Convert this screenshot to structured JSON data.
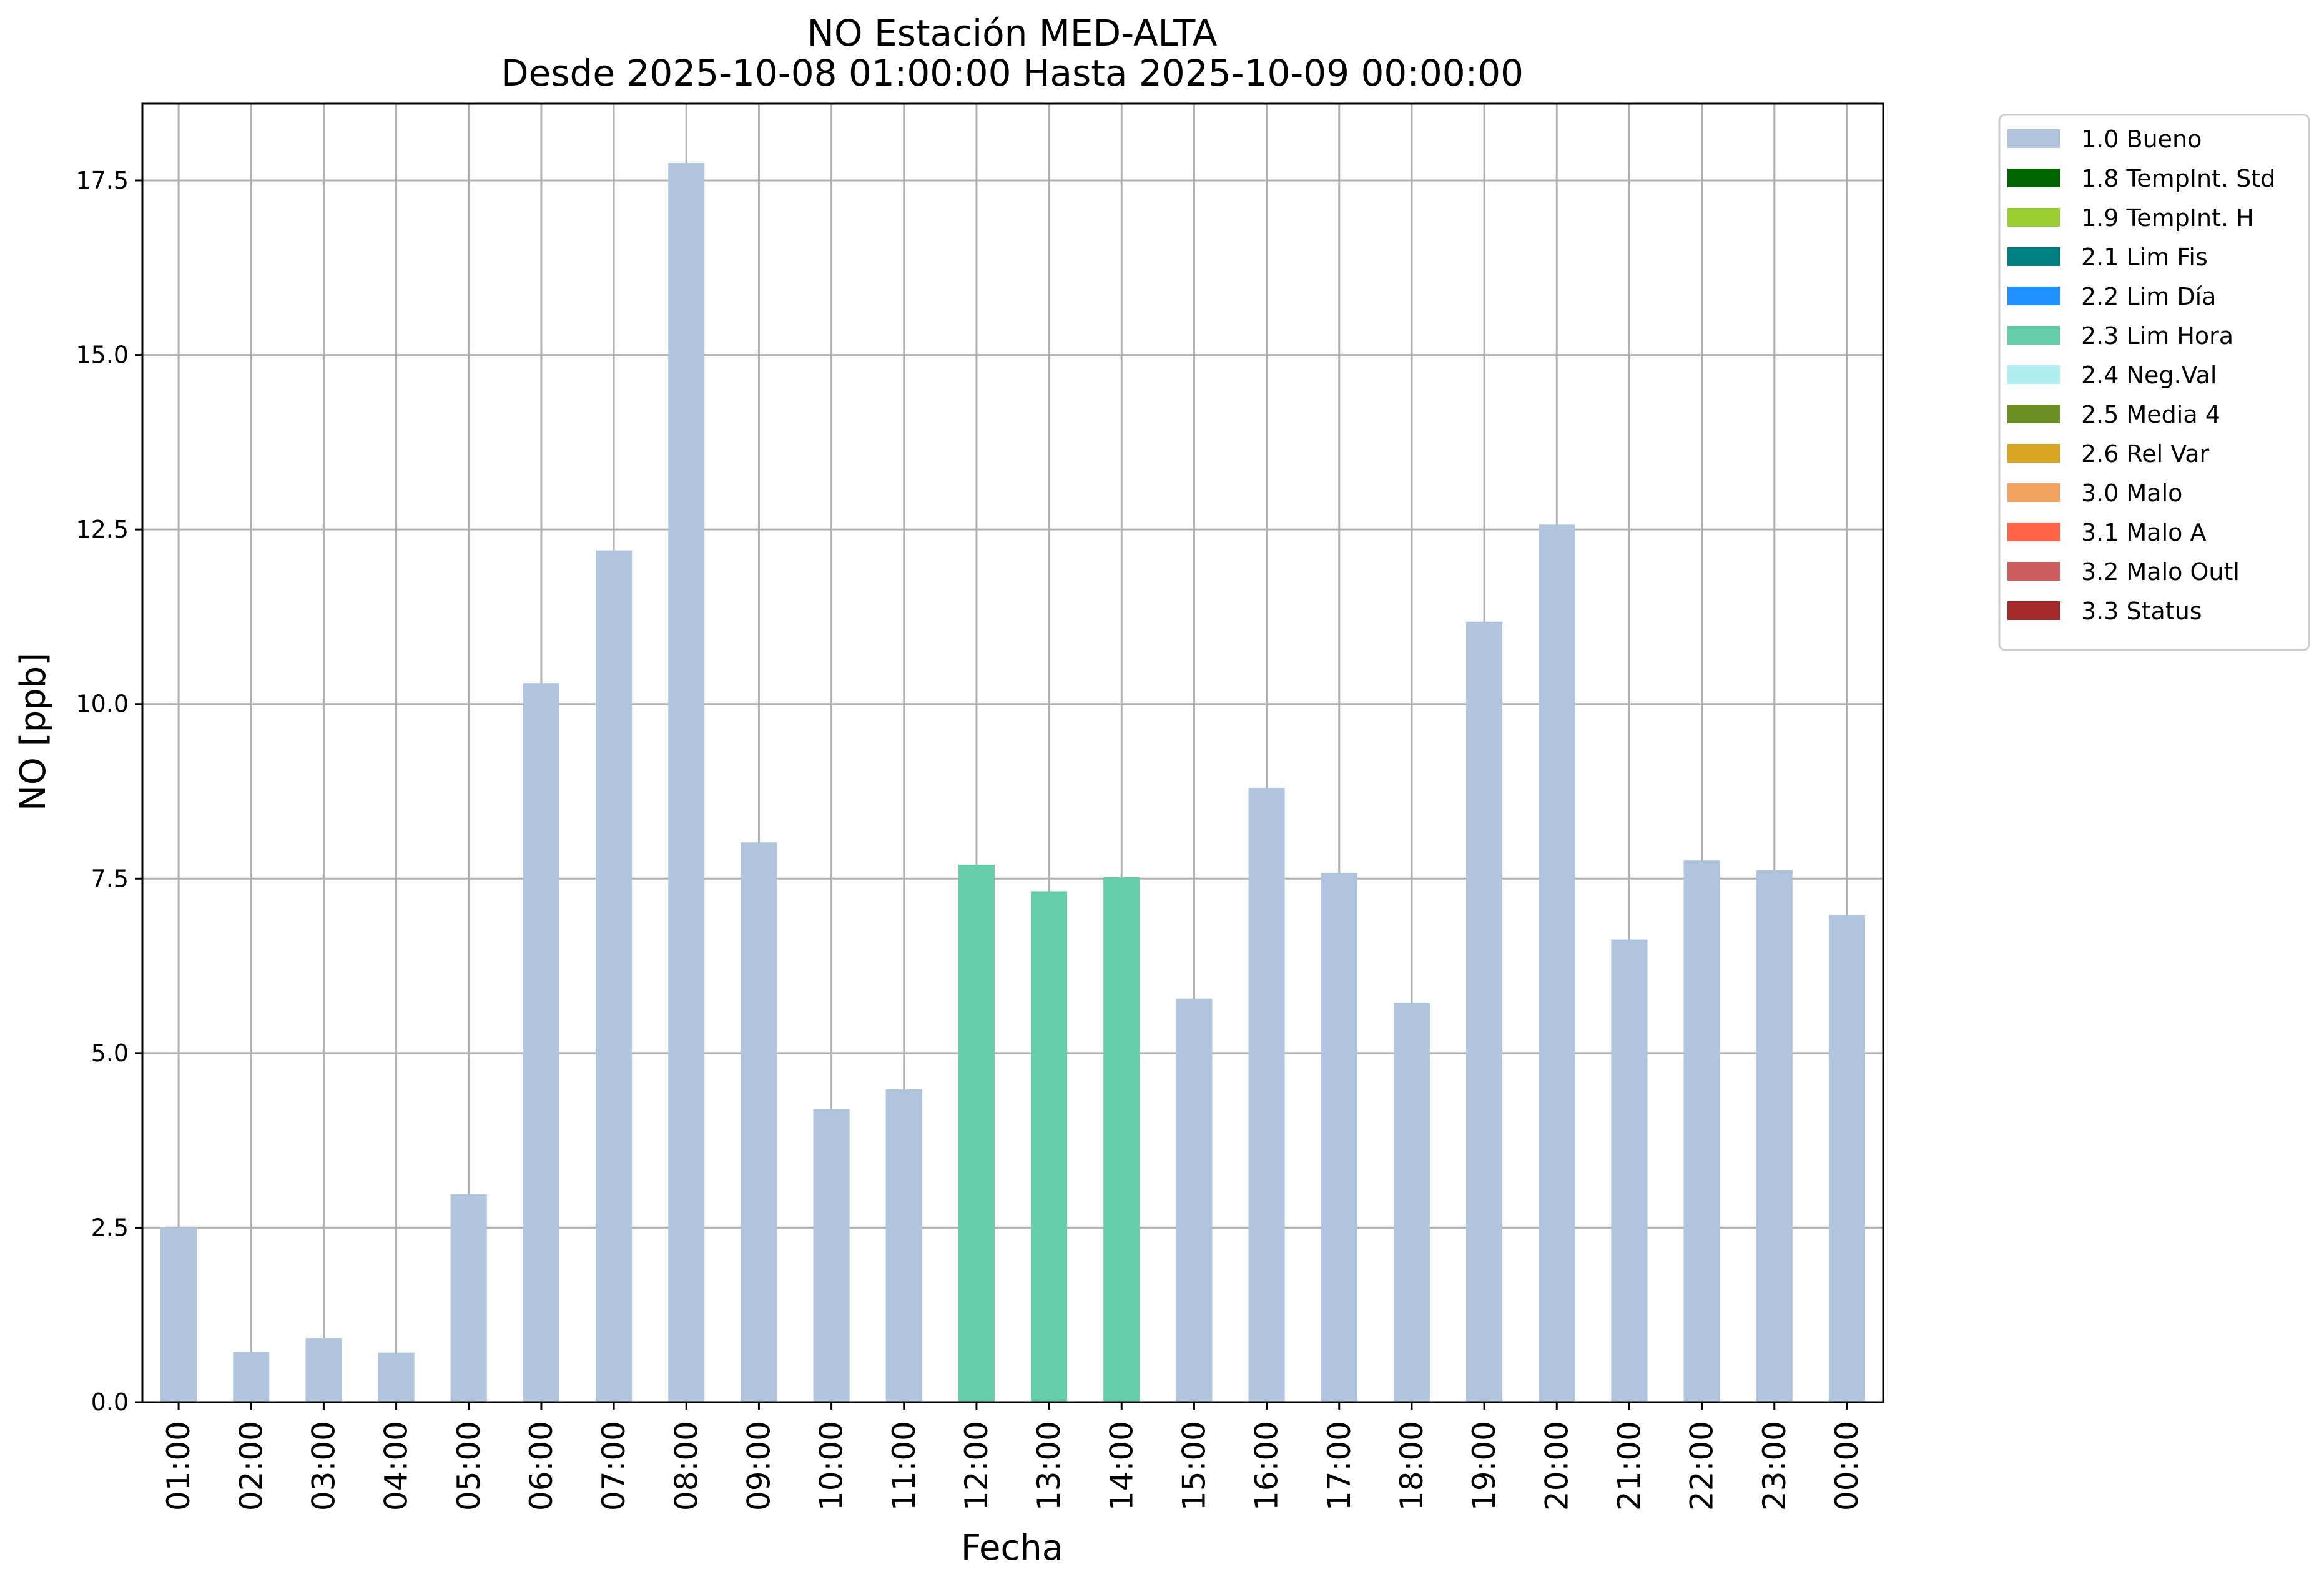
{
  "chart_data": {
    "type": "bar",
    "title": "NO Estación MED-ALTA",
    "subtitle": "Desde 2025-10-08 01:00:00 Hasta 2025-10-09 00:00:00",
    "xlabel": "Fecha",
    "ylabel": "NO [ppb]",
    "ylim": [
      0,
      18.6
    ],
    "yticks": [
      "0.0",
      "2.5",
      "5.0",
      "7.5",
      "10.0",
      "12.5",
      "15.0",
      "17.5"
    ],
    "ytick_values": [
      0,
      2.5,
      5,
      7.5,
      10,
      12.5,
      15,
      17.5
    ],
    "grid": true,
    "legend_position": "outside-top-right",
    "categories": [
      "01:00",
      "02:00",
      "03:00",
      "04:00",
      "05:00",
      "06:00",
      "07:00",
      "08:00",
      "09:00",
      "10:00",
      "11:00",
      "12:00",
      "13:00",
      "14:00",
      "15:00",
      "16:00",
      "17:00",
      "18:00",
      "19:00",
      "20:00",
      "21:00",
      "22:00",
      "23:00",
      "00:00"
    ],
    "values": [
      2.5,
      0.72,
      0.92,
      0.71,
      2.98,
      10.3,
      12.2,
      17.75,
      8.02,
      4.2,
      4.48,
      7.7,
      7.32,
      7.52,
      5.78,
      8.8,
      7.58,
      5.72,
      11.18,
      12.57,
      6.63,
      7.76,
      7.62,
      6.98
    ],
    "flags": [
      "1.0 Bueno",
      "1.0 Bueno",
      "1.0 Bueno",
      "1.0 Bueno",
      "1.0 Bueno",
      "1.0 Bueno",
      "1.0 Bueno",
      "1.0 Bueno",
      "1.0 Bueno",
      "1.0 Bueno",
      "1.0 Bueno",
      "2.3 Lim Hora",
      "2.3 Lim Hora",
      "2.3 Lim Hora",
      "1.0 Bueno",
      "1.0 Bueno",
      "1.0 Bueno",
      "1.0 Bueno",
      "1.0 Bueno",
      "1.0 Bueno",
      "1.0 Bueno",
      "1.0 Bueno",
      "1.0 Bueno",
      "1.0 Bueno"
    ],
    "legend": [
      {
        "name": "1.0 Bueno",
        "color": "#b0c4de"
      },
      {
        "name": "1.8 TempInt. Std",
        "color": "#006400"
      },
      {
        "name": "1.9 TempInt. H",
        "color": "#9acd32"
      },
      {
        "name": "2.1 Lim Fis",
        "color": "#008080"
      },
      {
        "name": "2.2 Lim Día",
        "color": "#1e90ff"
      },
      {
        "name": "2.3 Lim Hora",
        "color": "#66cdaa"
      },
      {
        "name": "2.4 Neg.Val",
        "color": "#afeeee"
      },
      {
        "name": "2.5 Media 4",
        "color": "#6b8e23"
      },
      {
        "name": "2.6 Rel Var",
        "color": "#daa520"
      },
      {
        "name": "3.0 Malo",
        "color": "#f4a460"
      },
      {
        "name": "3.1 Malo A",
        "color": "#ff6347"
      },
      {
        "name": "3.2 Malo Outl",
        "color": "#cd5c5c"
      },
      {
        "name": "3.3 Status",
        "color": "#a52a2a"
      }
    ]
  }
}
